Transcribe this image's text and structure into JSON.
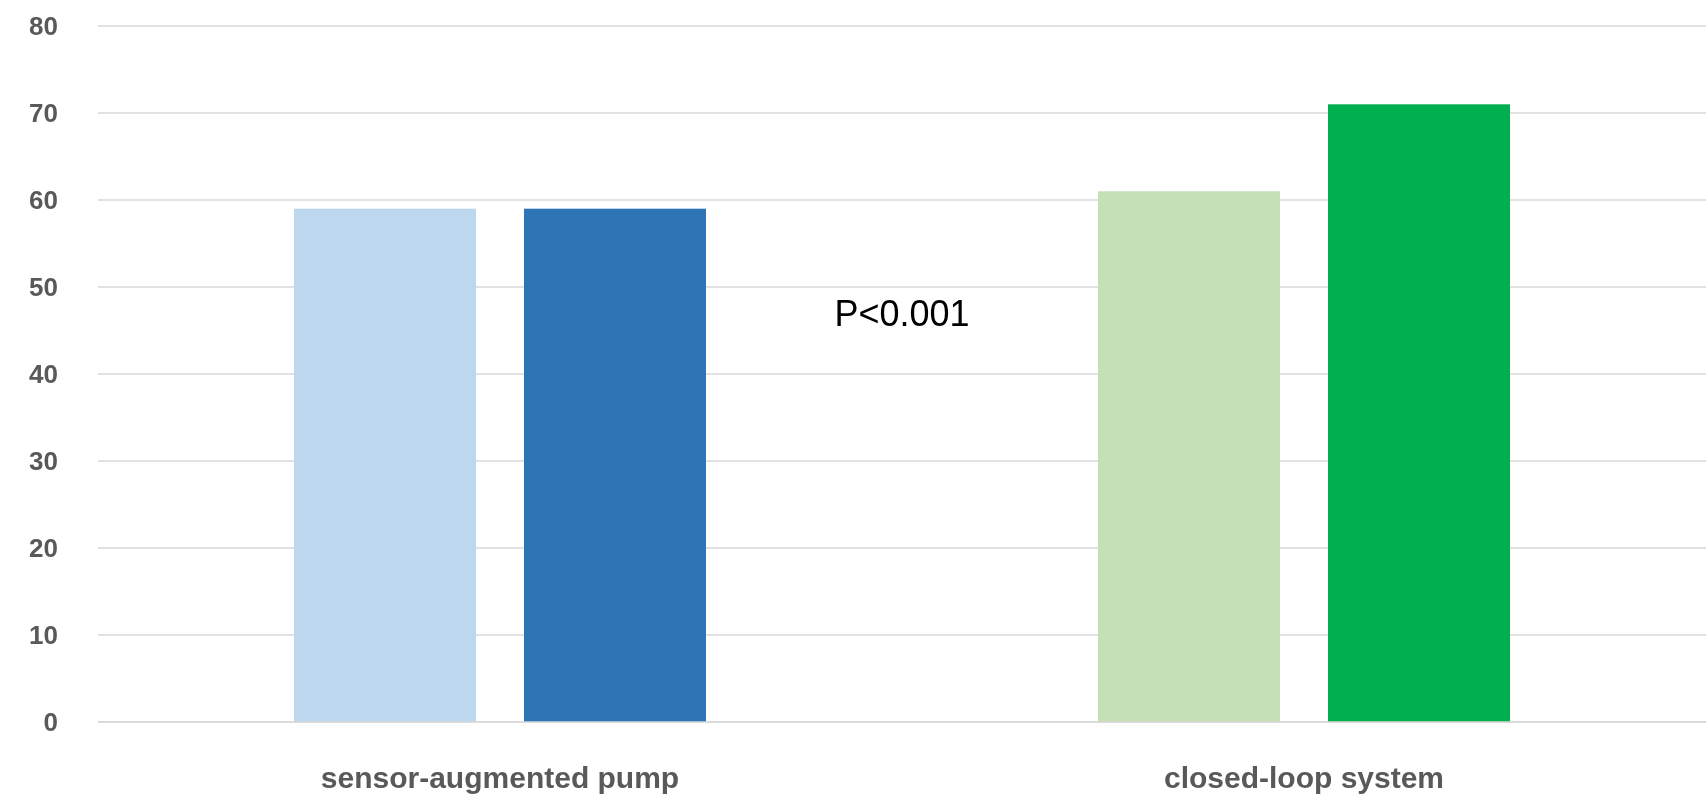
{
  "chart_data": {
    "type": "bar",
    "categories": [
      "sensor-augmented pump",
      "closed-loop system"
    ],
    "series": [
      {
        "colors": [
          "#bdd7ee",
          "#c5e0b4"
        ],
        "values": [
          59,
          61
        ]
      },
      {
        "colors": [
          "#2e75b6",
          "#00b050"
        ],
        "values": [
          59,
          71
        ]
      }
    ],
    "ylim": [
      0,
      80
    ],
    "yticks": [
      0,
      10,
      20,
      30,
      40,
      50,
      60,
      70,
      80
    ],
    "grid": "y",
    "annotations": [
      "P<0.001"
    ]
  }
}
